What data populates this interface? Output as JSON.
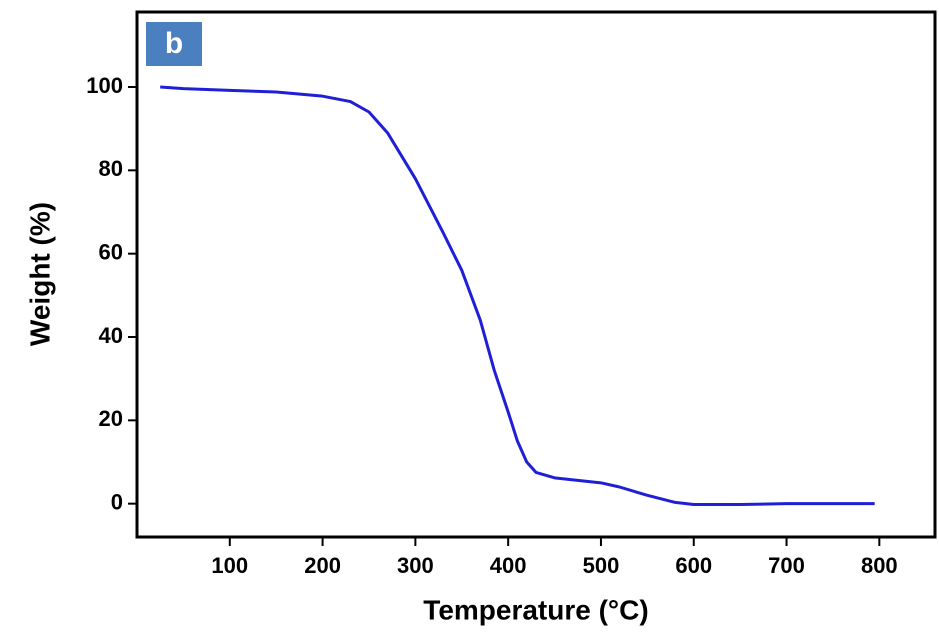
{
  "chart_data": {
    "type": "line",
    "panel_label": "b",
    "x_label": "Temperature (°C)",
    "y_label": "Weight (%)",
    "xlim": [
      0,
      860
    ],
    "ylim": [
      -8,
      118
    ],
    "xticks": [
      100,
      200,
      300,
      400,
      500,
      600,
      700,
      800
    ],
    "yticks": [
      0,
      20,
      40,
      60,
      80,
      100
    ],
    "series": [
      {
        "color": "#1f1fd6",
        "x": [
          25,
          50,
          100,
          150,
          200,
          230,
          250,
          270,
          300,
          330,
          350,
          370,
          385,
          400,
          410,
          420,
          430,
          450,
          500,
          520,
          550,
          580,
          600,
          650,
          700,
          750,
          795
        ],
        "values": [
          100,
          99.6,
          99.2,
          98.8,
          97.8,
          96.5,
          94,
          89,
          78,
          65,
          56,
          44,
          32,
          22,
          15,
          10,
          7.5,
          6.2,
          5,
          4,
          2,
          0.3,
          -0.2,
          -0.2,
          0,
          0,
          0
        ]
      }
    ]
  }
}
